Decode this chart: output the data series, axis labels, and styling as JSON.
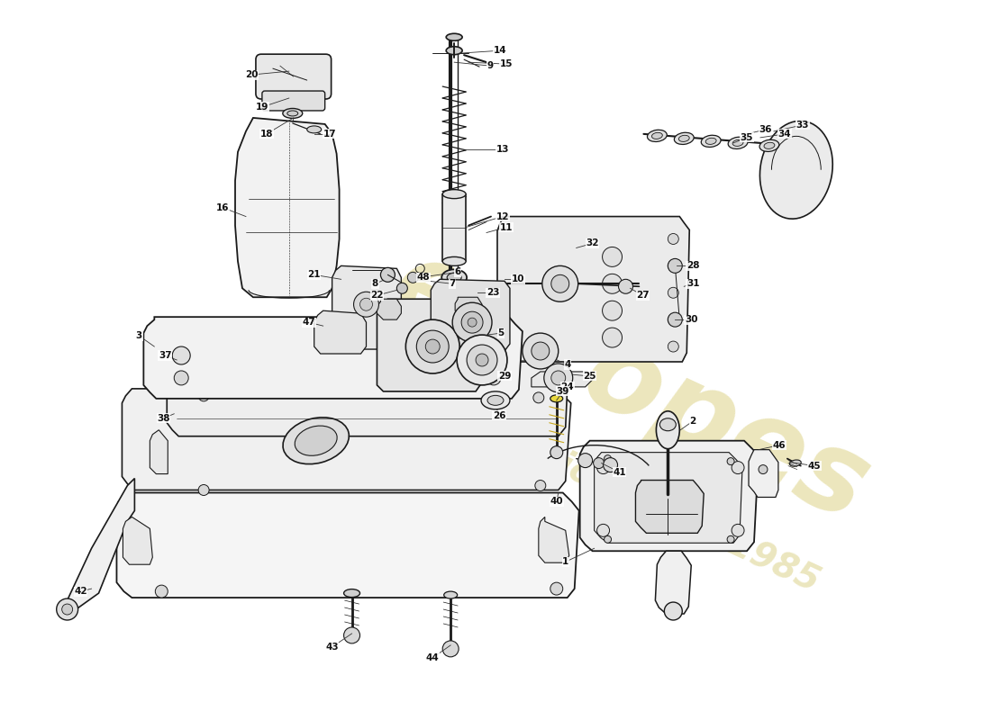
{
  "fig_w": 11.0,
  "fig_h": 8.0,
  "dpi": 100,
  "bg": "#ffffff",
  "lc": "#1a1a1a",
  "wc1": "#c8b840",
  "wc2": "#d4c870",
  "lw": 1.0
}
